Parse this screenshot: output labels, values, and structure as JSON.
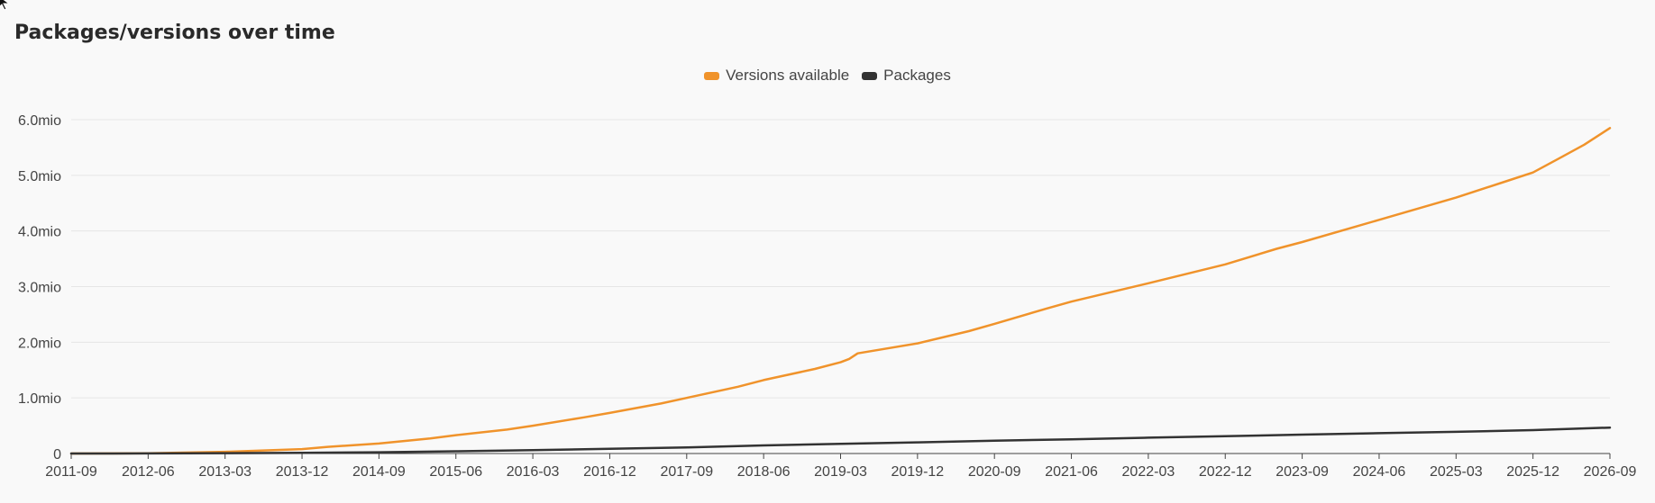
{
  "chart_data": {
    "type": "line",
    "title": "Packages/versions over time",
    "xlabel": "",
    "ylabel": "",
    "grid": true,
    "legend_placement": "top-center",
    "y_ticks": [
      {
        "value": 0,
        "label": "0"
      },
      {
        "value": 1000000,
        "label": "1.0mio"
      },
      {
        "value": 2000000,
        "label": "2.0mio"
      },
      {
        "value": 3000000,
        "label": "3.0mio"
      },
      {
        "value": 4000000,
        "label": "4.0mio"
      },
      {
        "value": 5000000,
        "label": "5.0mio"
      },
      {
        "value": 6000000,
        "label": "6.0mio"
      }
    ],
    "ylim": [
      0,
      6000000
    ],
    "x_range": [
      "2011-09",
      "2026-09"
    ],
    "x_ticks": [
      "2011-09",
      "2012-06",
      "2013-03",
      "2013-12",
      "2014-09",
      "2015-06",
      "2016-03",
      "2016-12",
      "2017-09",
      "2018-06",
      "2019-03",
      "2019-12",
      "2020-09",
      "2021-06",
      "2022-03",
      "2022-12",
      "2023-09",
      "2024-06",
      "2025-03",
      "2025-12",
      "2026-09"
    ],
    "series": [
      {
        "name": "Versions available",
        "color": "#f0932b",
        "points": [
          [
            "2011-09",
            0
          ],
          [
            "2012-06",
            5000
          ],
          [
            "2013-03",
            30000
          ],
          [
            "2013-12",
            80000
          ],
          [
            "2014-03",
            120000
          ],
          [
            "2014-09",
            180000
          ],
          [
            "2015-03",
            270000
          ],
          [
            "2015-06",
            330000
          ],
          [
            "2015-12",
            430000
          ],
          [
            "2016-03",
            500000
          ],
          [
            "2016-09",
            650000
          ],
          [
            "2016-12",
            730000
          ],
          [
            "2017-06",
            900000
          ],
          [
            "2017-09",
            1000000
          ],
          [
            "2018-03",
            1200000
          ],
          [
            "2018-06",
            1320000
          ],
          [
            "2018-12",
            1520000
          ],
          [
            "2019-03",
            1640000
          ],
          [
            "2019-04",
            1700000
          ],
          [
            "2019-05",
            1800000
          ],
          [
            "2019-12",
            1980000
          ],
          [
            "2020-06",
            2200000
          ],
          [
            "2020-09",
            2330000
          ],
          [
            "2021-03",
            2600000
          ],
          [
            "2021-06",
            2730000
          ],
          [
            "2022-03",
            3060000
          ],
          [
            "2022-12",
            3400000
          ],
          [
            "2023-06",
            3680000
          ],
          [
            "2023-09",
            3800000
          ],
          [
            "2024-06",
            4200000
          ],
          [
            "2025-03",
            4600000
          ],
          [
            "2025-09",
            4900000
          ],
          [
            "2025-12",
            5050000
          ],
          [
            "2026-03",
            5300000
          ],
          [
            "2026-06",
            5550000
          ],
          [
            "2026-09",
            5850000
          ]
        ]
      },
      {
        "name": "Packages",
        "color": "#333333",
        "points": [
          [
            "2011-09",
            0
          ],
          [
            "2012-06",
            2000
          ],
          [
            "2013-03",
            6000
          ],
          [
            "2013-12",
            12000
          ],
          [
            "2014-09",
            22000
          ],
          [
            "2015-06",
            40000
          ],
          [
            "2016-03",
            60000
          ],
          [
            "2016-12",
            85000
          ],
          [
            "2017-09",
            110000
          ],
          [
            "2018-06",
            145000
          ],
          [
            "2019-03",
            175000
          ],
          [
            "2019-12",
            200000
          ],
          [
            "2020-09",
            230000
          ],
          [
            "2021-06",
            255000
          ],
          [
            "2022-03",
            285000
          ],
          [
            "2022-12",
            310000
          ],
          [
            "2023-09",
            340000
          ],
          [
            "2024-06",
            365000
          ],
          [
            "2025-03",
            390000
          ],
          [
            "2025-12",
            420000
          ],
          [
            "2026-09",
            465000
          ]
        ]
      }
    ]
  }
}
